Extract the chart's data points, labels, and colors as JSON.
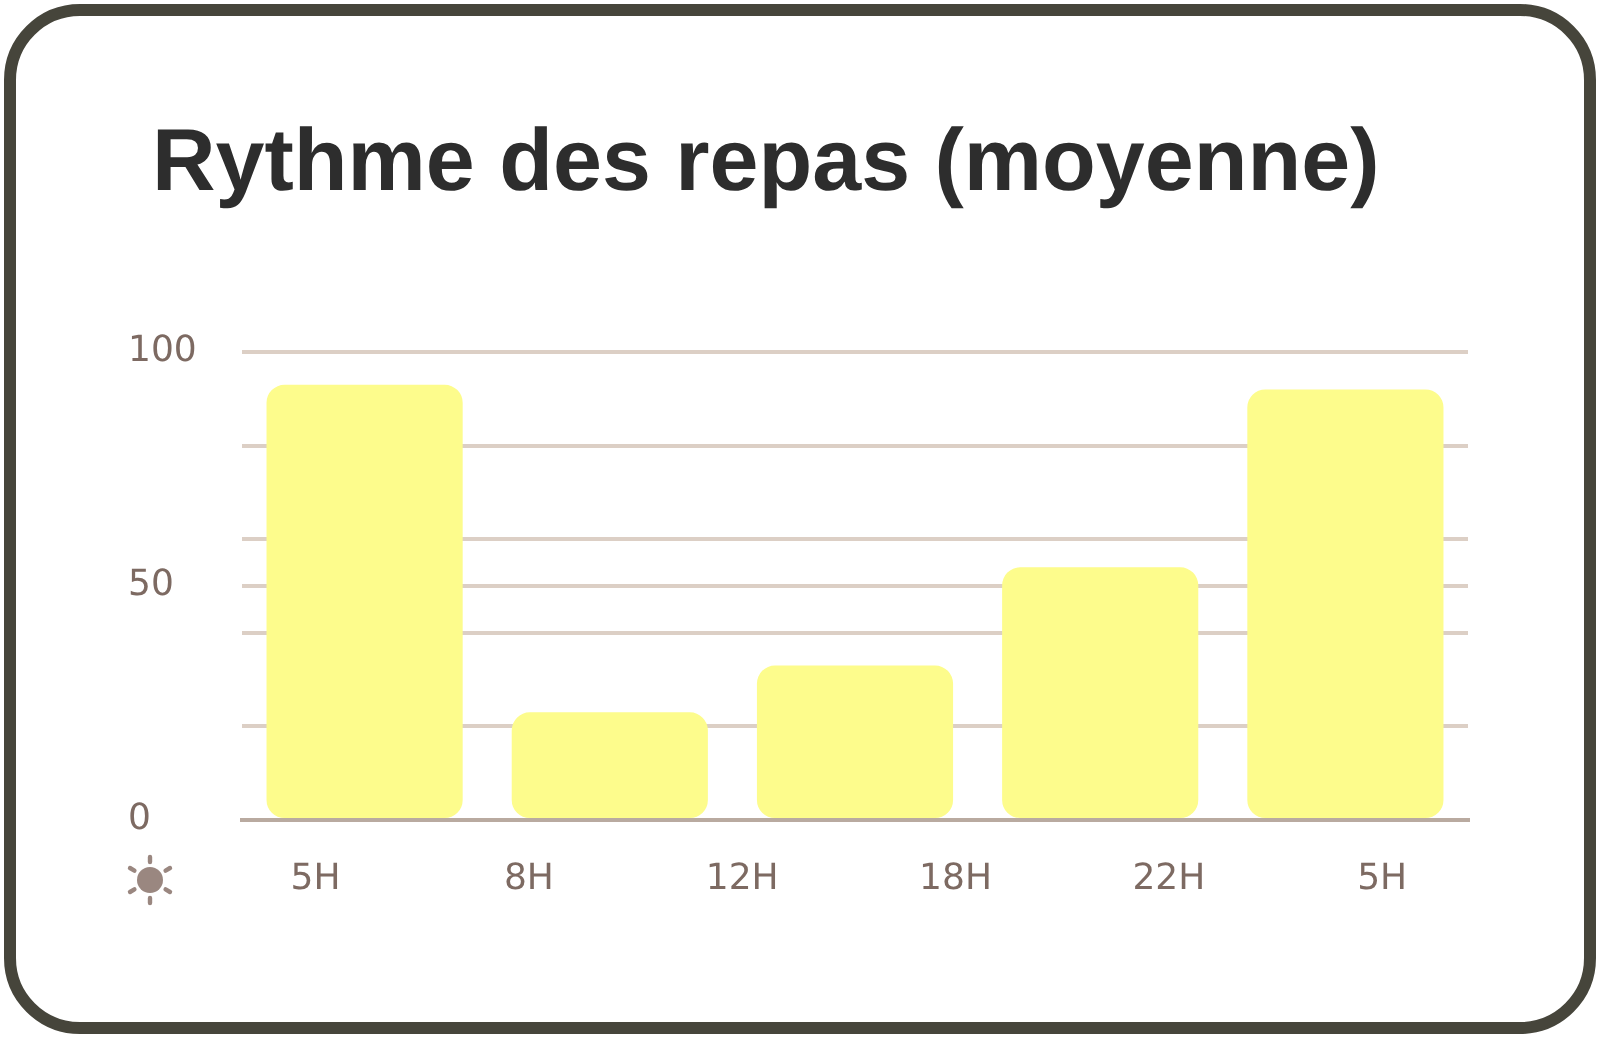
{
  "chart_data": {
    "type": "bar",
    "title": "Rythme des repas (moyenne)",
    "categories": [
      null,
      null,
      null,
      null,
      null
    ],
    "values": [
      93,
      23,
      33,
      54,
      92
    ],
    "color": "#fdfc8c",
    "ylim": [
      0,
      100
    ],
    "yticks": [
      0,
      {
        "value": 20,
        "label": null
      },
      {
        "value": 40,
        "label": null
      },
      50,
      {
        "value": 60,
        "label": null
      },
      {
        "value": 80,
        "label": null
      },
      100
    ],
    "grid": "y",
    "annotations": [
      "5H",
      "8H",
      "12H",
      "18H",
      "22H",
      "5H"
    ]
  }
}
